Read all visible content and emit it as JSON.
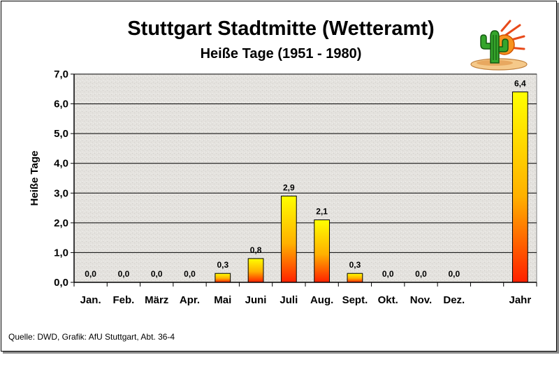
{
  "chart_data": {
    "type": "bar",
    "title": "Stuttgart Stadtmitte (Wetteramt)",
    "subtitle": "Heiße Tage (1951 - 1980)",
    "ylabel": "Heiße Tage",
    "xlabel": "",
    "ylim": [
      0,
      7
    ],
    "yticks": [
      "0,0",
      "1,0",
      "2,0",
      "3,0",
      "4,0",
      "5,0",
      "6,0",
      "7,0"
    ],
    "grid": true,
    "categories": [
      "Jan.",
      "Feb.",
      "März",
      "Apr.",
      "Mai",
      "Juni",
      "Juli",
      "Aug.",
      "Sept.",
      "Okt.",
      "Nov.",
      "Dez.",
      "",
      "Jahr"
    ],
    "values": [
      0,
      0,
      0,
      0,
      0.3,
      0.8,
      2.9,
      2.1,
      0.3,
      0,
      0,
      0,
      null,
      6.4
    ],
    "value_labels": [
      "0,0",
      "0,0",
      "0,0",
      "0,0",
      "0,3",
      "0,8",
      "2,9",
      "2,1",
      "0,3",
      "0,0",
      "0,0",
      "0,0",
      "",
      "6,4"
    ],
    "bar_gradient": {
      "top": "#ffff00",
      "bottom": "#ff2000"
    },
    "plot_background": "#e4e2de",
    "source": "Quelle: DWD, Grafik: AfU Stuttgart, Abt. 36-4"
  },
  "logo": {
    "icon": "cactus-sun-icon"
  }
}
